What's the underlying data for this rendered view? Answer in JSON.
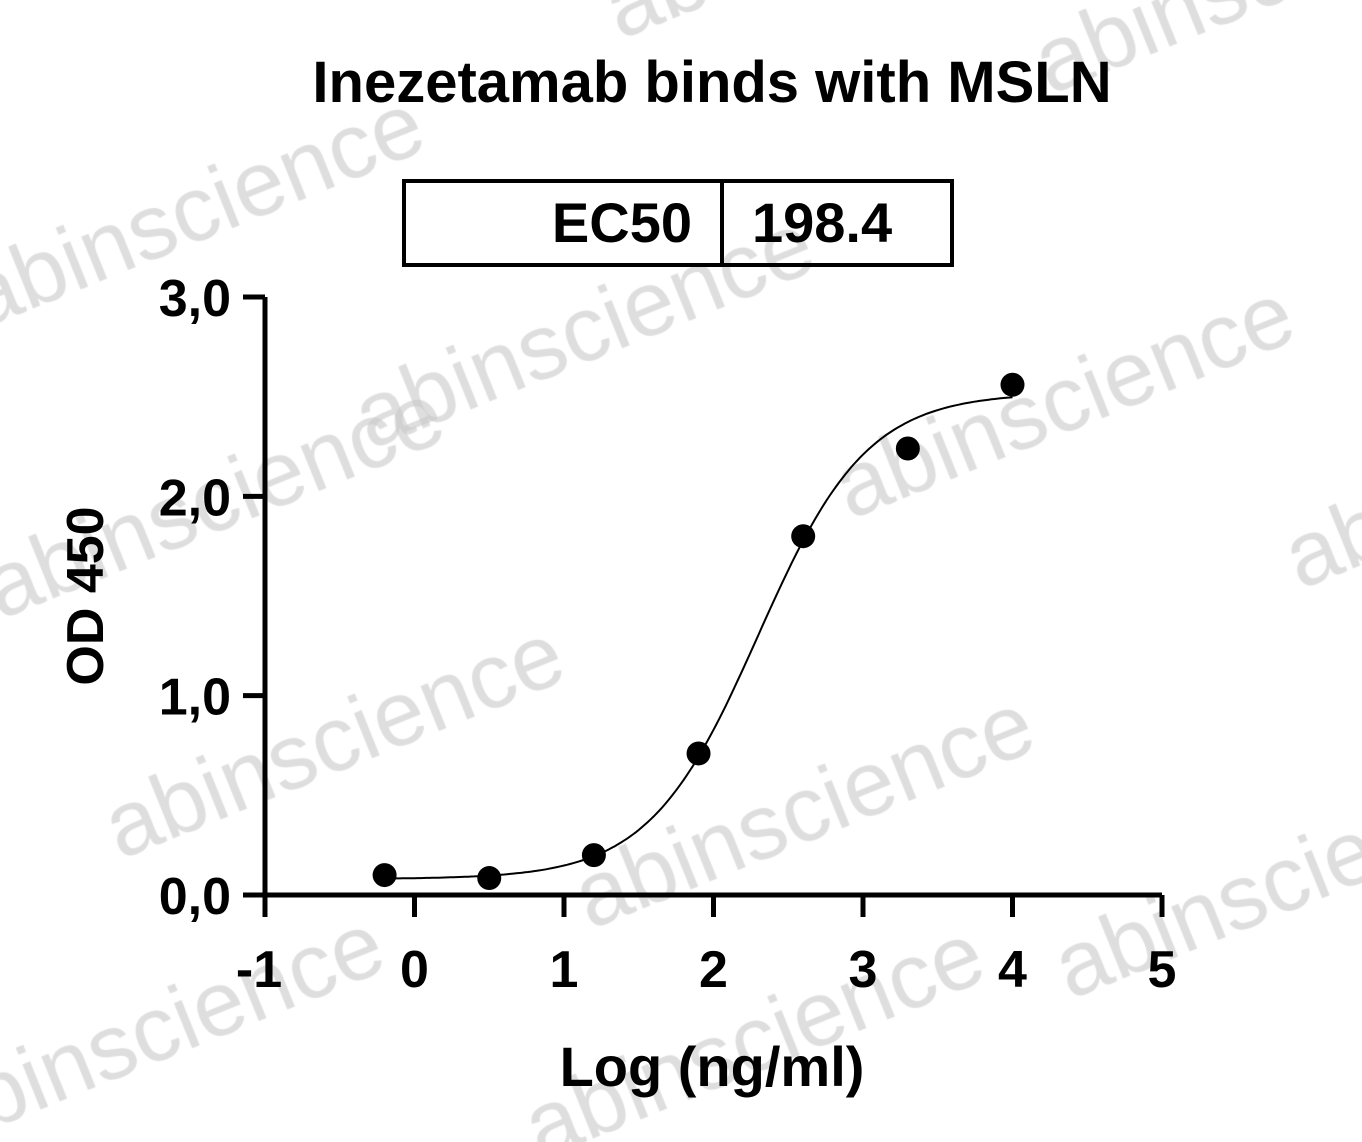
{
  "chart_data": {
    "type": "scatter",
    "title": "Inezetamab binds with MSLN",
    "xlabel": "Log (ng/ml)",
    "ylabel": "OD 450",
    "xlim": [
      -1,
      5
    ],
    "ylim": [
      0,
      3
    ],
    "x_ticks": [
      "-1",
      "0",
      "1",
      "2",
      "3",
      "4",
      "5"
    ],
    "y_ticks": [
      "0,0",
      "1,0",
      "2,0",
      "3,0"
    ],
    "grid": false,
    "legend_table": {
      "label": "EC50",
      "value": "198.4"
    },
    "series": [
      {
        "points": [
          {
            "x": -0.2,
            "y": 0.1
          },
          {
            "x": 0.5,
            "y": 0.085
          },
          {
            "x": 1.2,
            "y": 0.2
          },
          {
            "x": 1.9,
            "y": 0.71
          },
          {
            "x": 2.6,
            "y": 1.8
          },
          {
            "x": 3.3,
            "y": 2.24
          },
          {
            "x": 4.0,
            "y": 2.56
          }
        ],
        "fit": {
          "model": "4PL",
          "bottom": 0.08,
          "top": 2.52,
          "logEC50": 2.2975,
          "hill": 1.19
        },
        "color": "#000000"
      }
    ]
  },
  "watermark": "abinscience"
}
